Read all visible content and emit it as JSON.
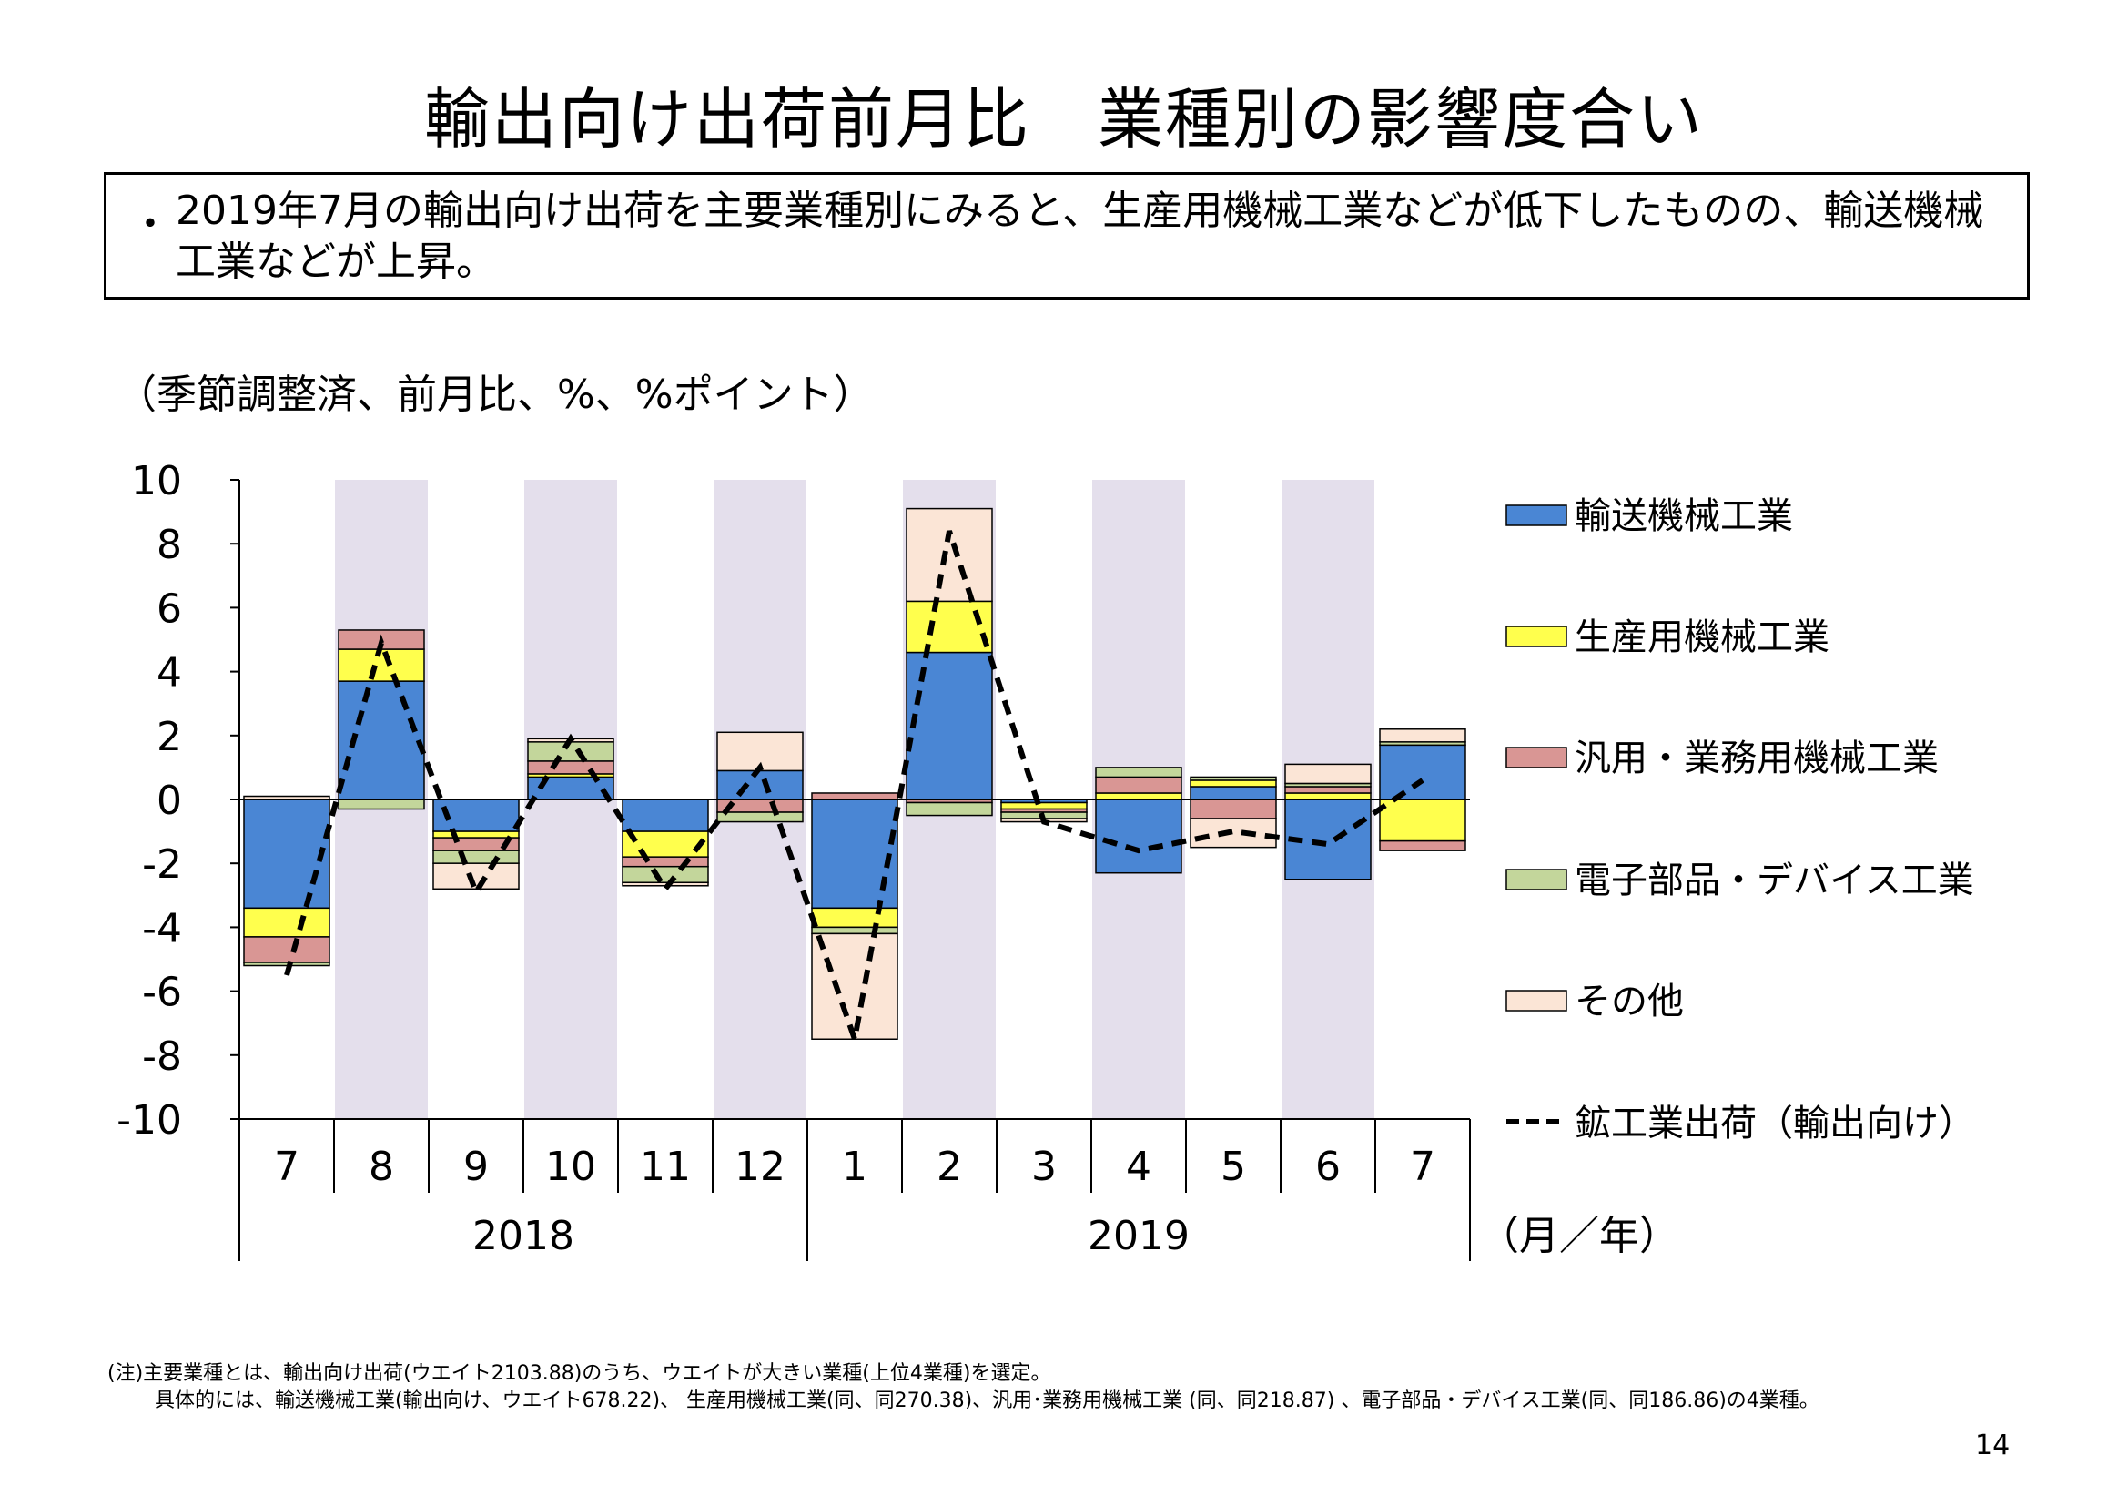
{
  "title": "輸出向け出荷前月比　業種別の影響度合い",
  "summary": {
    "bullet": "・",
    "text": "2019年7月の輸出向け出荷を主要業種別にみると、生産用機械工業などが低下したものの、輸送機械工業などが上昇。"
  },
  "colors": {
    "輸送機械工業": "#4a86d4",
    "生産用機械工業": "#ffff4d",
    "汎用・業務用機械工業": "#d99694",
    "電子部品・デバイス工業": "#c3d69b",
    "その他": "#fbe5d6",
    "line": "#000000",
    "band": "#e4dfec"
  },
  "chart_data": {
    "type": "bar",
    "stacked": true,
    "unit_label": "（季節調整済、前月比、%、%ポイント）",
    "ylim": [
      -10,
      10
    ],
    "yticks": [
      "10",
      "8",
      "6",
      "4",
      "2",
      "0",
      "-2",
      "-4",
      "-6",
      "-8",
      "-10"
    ],
    "categories": [
      "7",
      "8",
      "9",
      "10",
      "11",
      "12",
      "1",
      "2",
      "3",
      "4",
      "5",
      "6",
      "7"
    ],
    "years": [
      {
        "label": "2018",
        "span": [
          0,
          5
        ]
      },
      {
        "label": "2019",
        "span": [
          6,
          12
        ]
      }
    ],
    "x_unit": "（月／年）",
    "shaded_months": [
      1,
      3,
      5,
      7,
      9,
      11
    ],
    "series": [
      {
        "name": "輸送機械工業",
        "values": [
          -3.4,
          3.7,
          -1.0,
          0.7,
          -1.0,
          0.9,
          -3.4,
          4.6,
          -0.1,
          -2.3,
          0.4,
          -2.5,
          1.7
        ]
      },
      {
        "name": "生産用機械工業",
        "values": [
          -0.9,
          1.0,
          -0.2,
          0.1,
          -0.8,
          0.0,
          -0.6,
          1.6,
          -0.2,
          0.2,
          0.2,
          0.2,
          -1.3
        ]
      },
      {
        "name": "汎用・業務用機械工業",
        "values": [
          -0.8,
          0.6,
          -0.4,
          0.4,
          -0.3,
          -0.4,
          0.2,
          -0.1,
          -0.1,
          0.5,
          -0.6,
          0.2,
          -0.3
        ]
      },
      {
        "name": "電子部品・デバイス工業",
        "values": [
          -0.1,
          -0.3,
          -0.4,
          0.6,
          -0.5,
          -0.3,
          -0.2,
          -0.4,
          -0.2,
          0.3,
          0.1,
          0.1,
          0.1
        ]
      },
      {
        "name": "その他",
        "values": [
          0.1,
          0.0,
          -0.8,
          0.1,
          -0.1,
          1.2,
          -3.3,
          2.9,
          -0.1,
          0.0,
          -0.9,
          0.6,
          0.4
        ]
      }
    ],
    "line": {
      "name": "鉱工業出荷（輸出向け）",
      "values": [
        -5.5,
        4.9,
        -2.9,
        1.9,
        -2.8,
        1.0,
        -7.5,
        8.4,
        -0.7,
        -1.6,
        -1.0,
        -1.4,
        0.6
      ]
    }
  },
  "notes": [
    "(注)主要業種とは、輸出向け出荷(ウエイト2103.88)のうち、ウエイトが大きい業種(上位4業種)を選定。",
    "具体的には、輸送機械工業(輸出向け、ウエイト678.22)、 生産用機械工業(同、同270.38)、汎用･業務用機械工業 (同、同218.87) 、電子部品・デバイス工業(同、同186.86)の4業種。"
  ],
  "page_number": "14"
}
